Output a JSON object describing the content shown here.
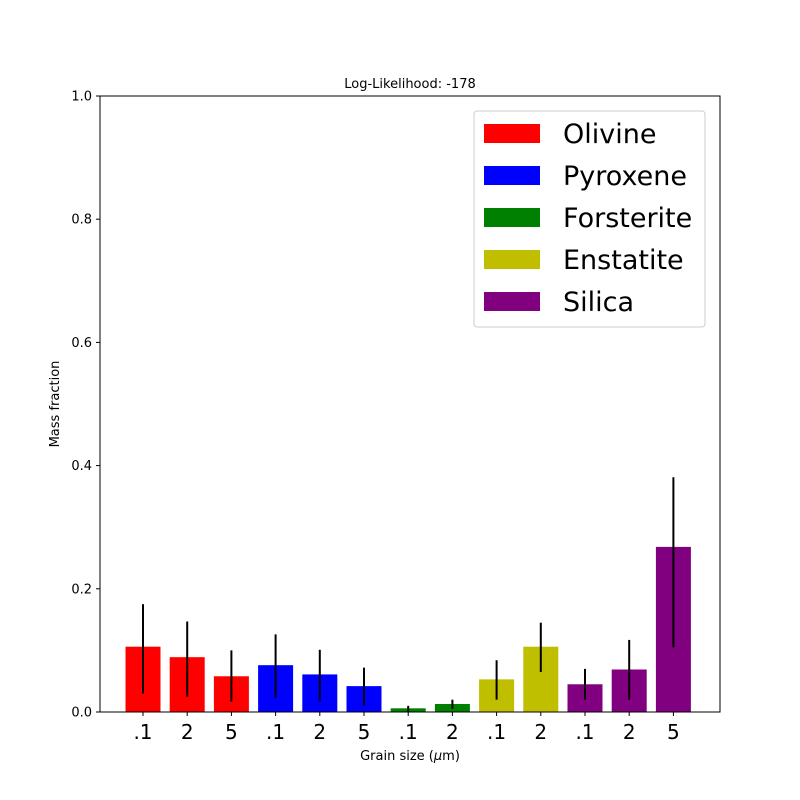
{
  "chart_data": {
    "type": "bar",
    "title": "Log-Likelihood: -178",
    "xlabel_main": "Grain size (",
    "xlabel_mu": "μ",
    "xlabel_unit": "m)",
    "ylabel": "Mass fraction",
    "ylim": [
      0,
      1.0
    ],
    "yticks": [
      "0.0",
      "0.2",
      "0.4",
      "0.6",
      "0.8",
      "1.0"
    ],
    "ytick_values": [
      0,
      0.2,
      0.4,
      0.6,
      0.8,
      1.0
    ],
    "grid": false,
    "legend_placement": "top-right",
    "categories": [
      ".1",
      "2",
      "5",
      ".1",
      "2",
      "5",
      ".1",
      "2",
      ".1",
      "2",
      ".1",
      "2",
      "5"
    ],
    "series": [
      {
        "name": "Olivine",
        "color": "#ff0000",
        "indices": [
          0,
          1,
          2
        ]
      },
      {
        "name": "Pyroxene",
        "color": "#0000ff",
        "indices": [
          3,
          4,
          5
        ]
      },
      {
        "name": "Forsterite",
        "color": "#008000",
        "indices": [
          6,
          7
        ]
      },
      {
        "name": "Enstatite",
        "color": "#bfbf00",
        "indices": [
          8,
          9
        ]
      },
      {
        "name": "Silica",
        "color": "#800080",
        "indices": [
          10,
          11,
          12
        ]
      }
    ],
    "values": [
      0.106,
      0.089,
      0.058,
      0.076,
      0.061,
      0.042,
      0.006,
      0.013,
      0.053,
      0.106,
      0.045,
      0.069,
      0.268
    ],
    "err_low": [
      0.03,
      0.025,
      0.017,
      0.023,
      0.018,
      0.01,
      0.001,
      0.005,
      0.02,
      0.065,
      0.02,
      0.02,
      0.105
    ],
    "err_high": [
      0.175,
      0.147,
      0.1,
      0.126,
      0.101,
      0.072,
      0.01,
      0.02,
      0.084,
      0.145,
      0.07,
      0.117,
      0.381
    ]
  }
}
